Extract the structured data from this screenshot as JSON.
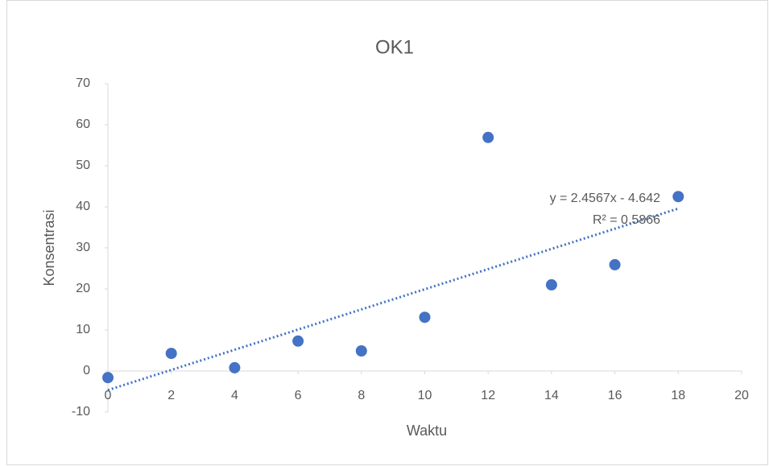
{
  "chart_data": {
    "type": "scatter",
    "title": "OK1",
    "x_label": "Waktu",
    "y_label": "Konsentrasi",
    "series": [
      {
        "name": "OK1",
        "color": "#4472c4",
        "x": [
          0,
          2,
          4,
          6,
          8,
          10,
          12,
          14,
          16,
          18
        ],
        "values": [
          -1.6,
          4.3,
          0.8,
          7.3,
          4.9,
          13.1,
          56.9,
          21,
          25.9,
          42.5
        ]
      }
    ],
    "trendline": {
      "slope": 2.4567,
      "intercept": -4.642,
      "color": "#4472c4",
      "equation": "y = 2.4567x - 4.642",
      "r_squared": "R² = 0.5866"
    },
    "xlim": [
      0,
      20
    ],
    "xticks": [
      0,
      2,
      4,
      6,
      8,
      10,
      12,
      14,
      16,
      18,
      20
    ],
    "ylim": [
      -10,
      70
    ],
    "yticks": [
      -10,
      0,
      10,
      20,
      30,
      40,
      50,
      60,
      70
    ]
  }
}
